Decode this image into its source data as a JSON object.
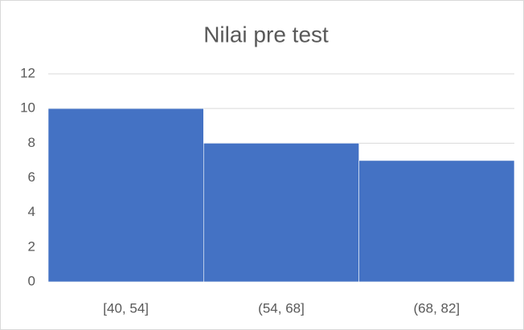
{
  "chart_data": {
    "type": "bar",
    "title": "Nilai pre test",
    "categories": [
      "[40, 54]",
      "(54, 68]",
      "(68, 82]"
    ],
    "values": [
      10,
      8,
      7
    ],
    "color": "#4472c4",
    "ylim": [
      0,
      12
    ],
    "yticks": [
      0,
      2,
      4,
      6,
      8,
      10,
      12
    ],
    "grid": true
  }
}
